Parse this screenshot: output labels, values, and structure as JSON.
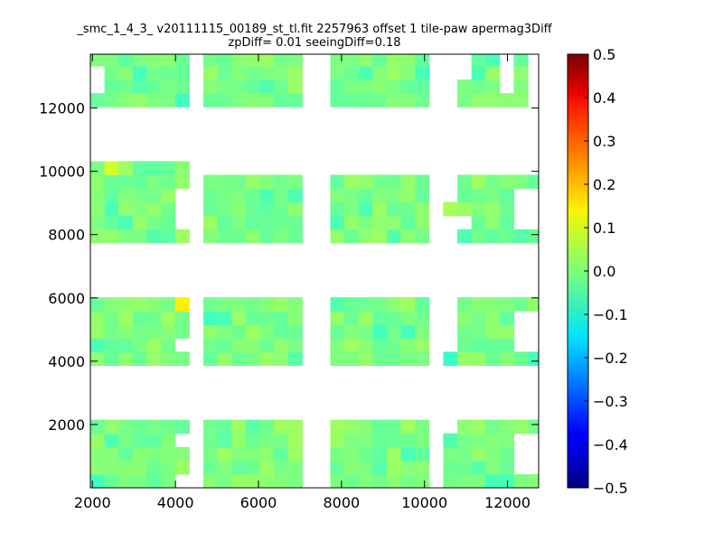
{
  "chart_data": {
    "type": "heatmap",
    "title": "_smc_1_4_3_ v20111115_00189_st_tl.fit 2257963 offset 1 tile-paw apermag3Diff",
    "subtitle": "zpDiff= 0.01 seeingDiff=0.18",
    "xlabel": "",
    "ylabel": "",
    "xlim": [
      1950,
      12750
    ],
    "ylim": [
      0,
      13700
    ],
    "xticks": [
      2000,
      4000,
      6000,
      8000,
      10000,
      12000
    ],
    "yticks": [
      2000,
      4000,
      6000,
      8000,
      10000,
      12000
    ],
    "colorbar": {
      "colormap": "jet",
      "vmin": -0.5,
      "vmax": 0.5,
      "ticks": [
        0.5,
        0.4,
        0.3,
        0.2,
        0.1,
        0.0,
        -0.1,
        -0.2,
        -0.3,
        -0.4,
        -0.5
      ],
      "tick_labels": [
        "0.5",
        "0.4",
        "0.3",
        "0.2",
        "0.1",
        "0.0",
        "−0.1",
        "−0.2",
        "−0.3",
        "−0.4",
        "−0.5"
      ]
    },
    "cell_size": [
      340,
      430
    ],
    "typical_value": 0.0,
    "outliers": [
      {
        "x": 4000,
        "y": 5800,
        "value": 0.14
      },
      {
        "x": 2400,
        "y": 10150,
        "value": 0.08
      },
      {
        "x": 4650,
        "y": 9700,
        "value": -0.1
      },
      {
        "x": 4000,
        "y": 12250,
        "value": -0.06
      },
      {
        "x": 10500,
        "y": 4200,
        "value": -0.07
      },
      {
        "x": 10500,
        "y": 8700,
        "value": 0.04
      }
    ],
    "tiles": [
      {
        "x": [
          1950,
          4300
        ],
        "y": [
          0,
          2150
        ]
      },
      {
        "x": [
          4650,
          7000
        ],
        "y": [
          0,
          2150
        ]
      },
      {
        "x": [
          7700,
          10000
        ],
        "y": [
          0,
          2150
        ]
      },
      {
        "x": [
          10350,
          10700
        ],
        "y": [
          0,
          1800
        ]
      },
      {
        "x": [
          10700,
          12750
        ],
        "y": [
          0,
          2150
        ]
      },
      {
        "x": [
          1950,
          4300
        ],
        "y": [
          3900,
          6000
        ]
      },
      {
        "x": [
          4650,
          7000
        ],
        "y": [
          3900,
          6000
        ]
      },
      {
        "x": [
          7700,
          10000
        ],
        "y": [
          3900,
          6000
        ]
      },
      {
        "x": [
          10350,
          10700
        ],
        "y": [
          3900,
          4300
        ]
      },
      {
        "x": [
          10700,
          12750
        ],
        "y": [
          3900,
          6000
        ]
      },
      {
        "x": [
          1950,
          4300
        ],
        "y": [
          7750,
          10300
        ]
      },
      {
        "x": [
          4650,
          7000
        ],
        "y": [
          7750,
          10300
        ]
      },
      {
        "x": [
          7700,
          10000
        ],
        "y": [
          7750,
          9800
        ]
      },
      {
        "x": [
          10350,
          10700
        ],
        "y": [
          8600,
          9000
        ]
      },
      {
        "x": [
          10700,
          12750
        ],
        "y": [
          7750,
          9800
        ]
      },
      {
        "x": [
          1950,
          4300
        ],
        "y": [
          11850,
          13700
        ]
      },
      {
        "x": [
          4650,
          7000
        ],
        "y": [
          11850,
          13700
        ]
      },
      {
        "x": [
          7700,
          10000
        ],
        "y": [
          11850,
          13700
        ]
      },
      {
        "x": [
          10700,
          12750
        ],
        "y": [
          11850,
          13700
        ]
      }
    ],
    "gaps": [
      {
        "x": [
          1950,
          2300
        ],
        "y": [
          12550,
          13300
        ]
      },
      {
        "x": [
          12400,
          12750
        ],
        "y": [
          11850,
          13700
        ]
      },
      {
        "x": [
          11700,
          12100
        ],
        "y": [
          12550,
          13700
        ]
      },
      {
        "x": [
          10700,
          11100
        ],
        "y": [
          12900,
          13700
        ]
      },
      {
        "x": [
          12000,
          12750
        ],
        "y": [
          400,
          1700
        ]
      },
      {
        "x": [
          12000,
          12750
        ],
        "y": [
          4300,
          5600
        ]
      },
      {
        "x": [
          12000,
          12750
        ],
        "y": [
          8200,
          9500
        ]
      },
      {
        "x": [
          10700,
          11200
        ],
        "y": [
          8200,
          8500
        ]
      },
      {
        "x": [
          4000,
          4300
        ],
        "y": [
          11850,
          12250
        ]
      },
      {
        "x": [
          4650,
          7000
        ],
        "y": [
          9900,
          10300
        ]
      },
      {
        "x": [
          4300,
          4650
        ],
        "y": [
          8700,
          9400
        ]
      },
      {
        "x": [
          4000,
          4300
        ],
        "y": [
          8200,
          9300
        ]
      },
      {
        "x": [
          4000,
          4300
        ],
        "y": [
          4300,
          4600
        ]
      },
      {
        "x": [
          4000,
          4300
        ],
        "y": [
          1100,
          1600
        ]
      },
      {
        "x": [
          4000,
          4300
        ],
        "y": [
          0,
          400
        ]
      }
    ]
  }
}
